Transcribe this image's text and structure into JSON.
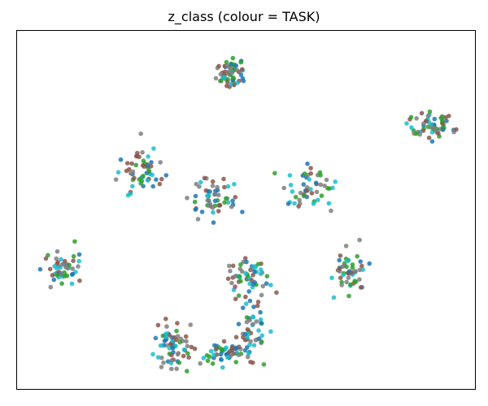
{
  "chart_data": {
    "type": "scatter",
    "title": "z_class (colour = TASK)",
    "xlabel": "",
    "ylabel": "",
    "axes_ticks": false,
    "grid": false,
    "legend": false,
    "xlim": [
      0,
      100
    ],
    "ylim": [
      0,
      100
    ],
    "palette": {
      "blue": "#1f77b4",
      "brown": "#8c564b",
      "green": "#2ca02c",
      "gray": "#7f7f7f",
      "cyan": "#17becf"
    },
    "clusters": [
      {
        "center": [
          46.7,
          88.4
        ],
        "spread": [
          3.2,
          4.0
        ],
        "n": 60,
        "mix": {
          "cyan": 0.22,
          "green": 0.2,
          "gray": 0.22,
          "brown": 0.2,
          "blue": 0.16
        }
      },
      {
        "center": [
          90.2,
          73.4
        ],
        "spread": [
          4.4,
          3.4
        ],
        "n": 60,
        "mix": {
          "blue": 0.22,
          "gray": 0.26,
          "green": 0.22,
          "brown": 0.14,
          "cyan": 0.16
        }
      },
      {
        "center": [
          27.6,
          60.8
        ],
        "spread": [
          5.0,
          5.0
        ],
        "n": 55,
        "mix": {
          "cyan": 0.18,
          "blue": 0.22,
          "gray": 0.22,
          "green": 0.2,
          "brown": 0.18
        }
      },
      {
        "center": [
          43.8,
          52.6
        ],
        "spread": [
          4.2,
          5.6
        ],
        "n": 55,
        "mix": {
          "cyan": 0.16,
          "brown": 0.22,
          "gray": 0.24,
          "green": 0.2,
          "blue": 0.18
        }
      },
      {
        "center": [
          63.6,
          56.8
        ],
        "spread": [
          4.0,
          5.0
        ],
        "n": 50,
        "mix": {
          "cyan": 0.26,
          "gray": 0.26,
          "green": 0.18,
          "brown": 0.16,
          "blue": 0.14
        }
      },
      {
        "center": [
          9.9,
          33.6
        ],
        "spread": [
          4.2,
          4.6
        ],
        "n": 50,
        "mix": {
          "cyan": 0.22,
          "gray": 0.24,
          "brown": 0.22,
          "blue": 0.16,
          "green": 0.16
        }
      },
      {
        "center": [
          72.9,
          32.8
        ],
        "spread": [
          3.0,
          5.2
        ],
        "n": 50,
        "mix": {
          "green": 0.3,
          "cyan": 0.22,
          "brown": 0.2,
          "gray": 0.14,
          "blue": 0.14
        }
      },
      {
        "center": [
          50.2,
          30.6
        ],
        "spread": [
          4.2,
          6.0
        ],
        "n": 60,
        "mix": {
          "gray": 0.26,
          "cyan": 0.22,
          "brown": 0.2,
          "blue": 0.18,
          "green": 0.14
        }
      },
      {
        "center": [
          33.6,
          12.4
        ],
        "spread": [
          3.2,
          6.8
        ],
        "n": 65,
        "mix": {
          "blue": 0.26,
          "green": 0.2,
          "brown": 0.2,
          "cyan": 0.2,
          "gray": 0.14
        }
      },
      {
        "center": [
          45.5,
          10.4
        ],
        "spread": [
          5.8,
          2.8
        ],
        "n": 55,
        "mix": {
          "blue": 0.32,
          "cyan": 0.26,
          "green": 0.22,
          "gray": 0.1,
          "brown": 0.1
        }
      },
      {
        "center": [
          51.6,
          16.6
        ],
        "spread": [
          3.0,
          6.0
        ],
        "n": 45,
        "mix": {
          "cyan": 0.3,
          "gray": 0.26,
          "brown": 0.2,
          "blue": 0.14,
          "green": 0.1
        }
      }
    ]
  }
}
